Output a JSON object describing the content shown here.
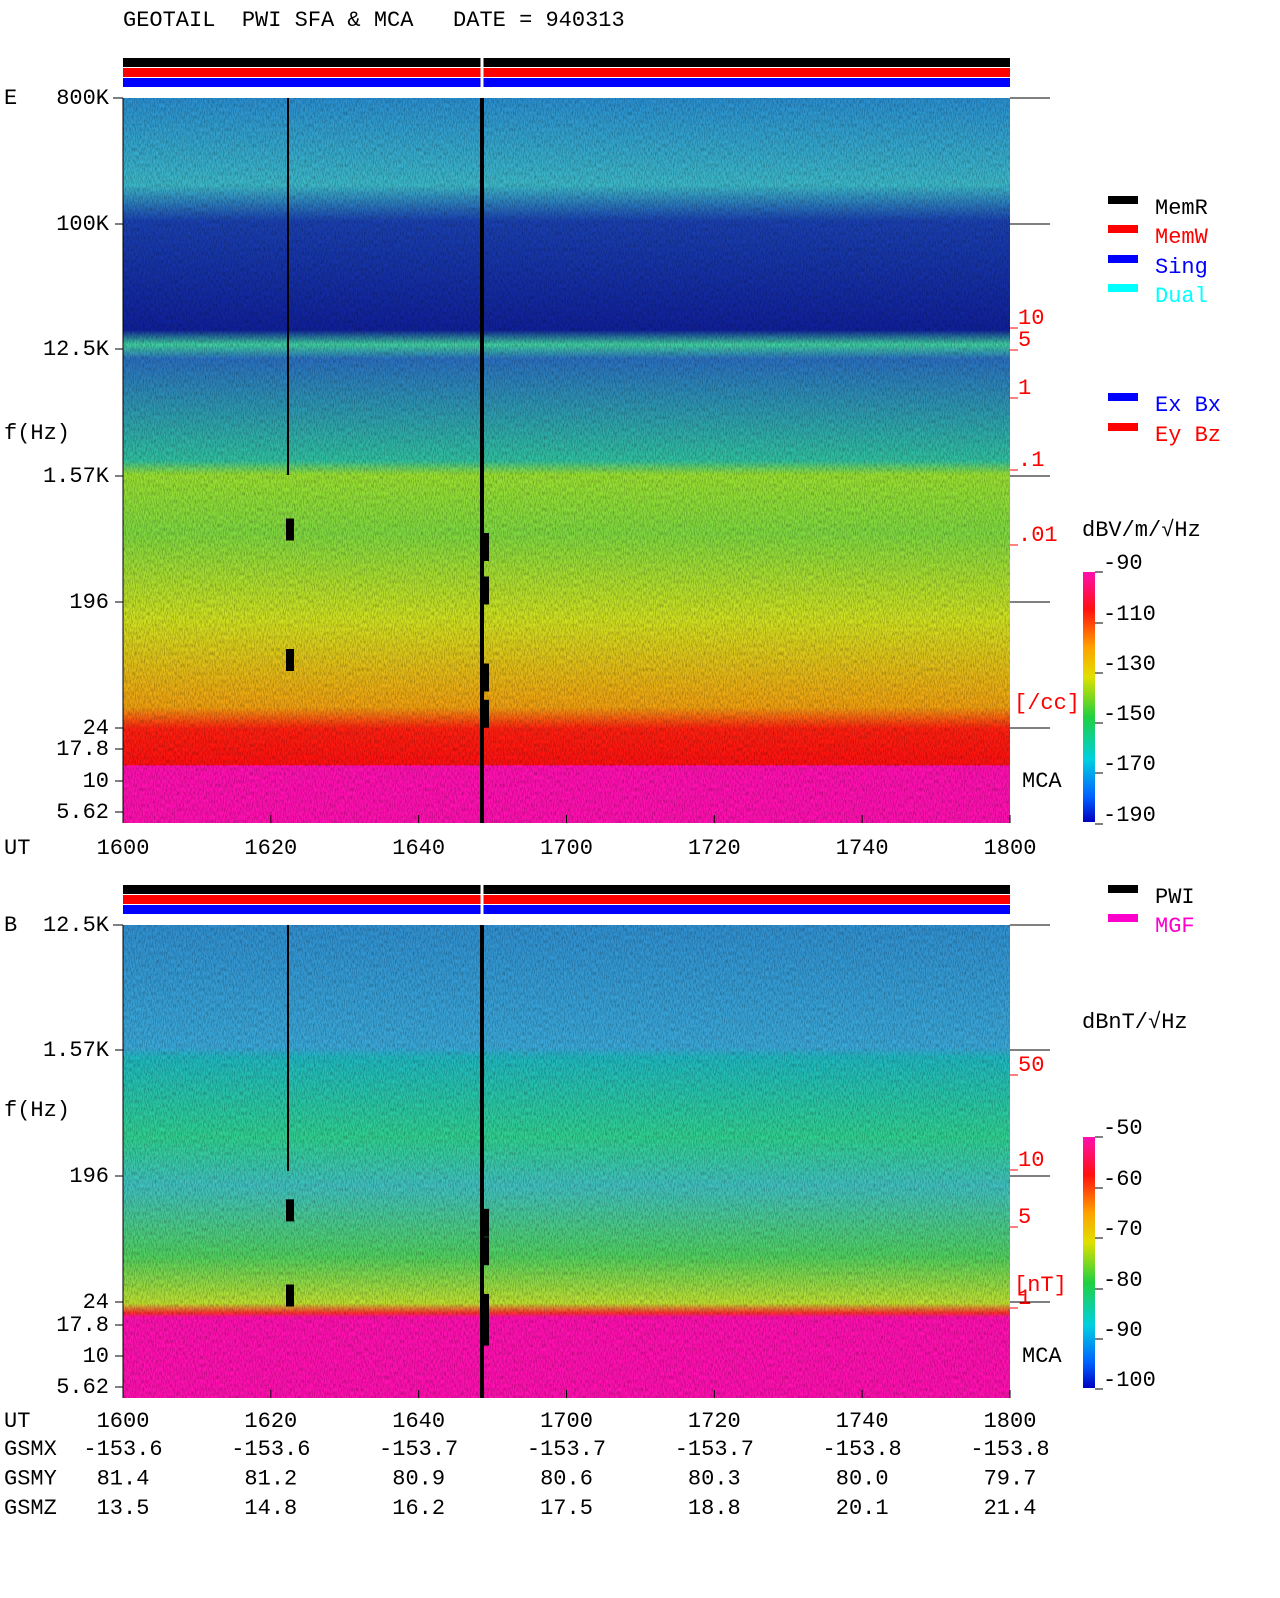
{
  "header": {
    "title": "GEOTAIL  PWI SFA & MCA   DATE = 940313"
  },
  "panels": [
    {
      "label": "E",
      "y_axis_label": "f(Hz)",
      "yticks": [
        "800K",
        "100K",
        "12.5K",
        "1.57K",
        "196",
        "24",
        "17.8",
        "10",
        "5.62"
      ],
      "right_ticks": [
        "10",
        "5",
        "1",
        ".1",
        ".01"
      ],
      "right_unit": "[/cc]",
      "mca_label": "MCA",
      "x_axis_label": "UT",
      "xticks": [
        "1600",
        "1620",
        "1640",
        "1700",
        "1720",
        "1740",
        "1800"
      ],
      "legend": [
        {
          "name": "MemR",
          "color": "#000000"
        },
        {
          "name": "MemW",
          "color": "#ff0000"
        },
        {
          "name": "Sing",
          "color": "#0000ff"
        },
        {
          "name": "Dual",
          "color": "#00ffff"
        },
        {
          "name": "Ex Bx",
          "color": "#0000ff"
        },
        {
          "name": "Ey Bz",
          "color": "#ff0000"
        }
      ],
      "colorbar": {
        "unit": "dBV/m/√Hz",
        "ticks": [
          -90,
          -110,
          -130,
          -150,
          -170,
          -190
        ]
      }
    },
    {
      "label": "B",
      "y_axis_label": "f(Hz)",
      "yticks": [
        "12.5K",
        "1.57K",
        "196",
        "24",
        "17.8",
        "10",
        "5.62"
      ],
      "right_ticks": [
        "50",
        "10",
        "5",
        "1"
      ],
      "right_unit": "[nT]",
      "mca_label": "MCA",
      "x_axis_label": "UT",
      "xticks": [
        "1600",
        "1620",
        "1640",
        "1700",
        "1720",
        "1740",
        "1800"
      ],
      "legend": [
        {
          "name": "PWI",
          "color": "#000000"
        },
        {
          "name": "MGF",
          "color": "#ff00cc"
        }
      ],
      "colorbar": {
        "unit": "dBnT/√Hz",
        "ticks": [
          -50,
          -60,
          -70,
          -80,
          -90,
          -100
        ]
      }
    }
  ],
  "orbit": {
    "rows": [
      {
        "name": "GSMX",
        "values": [
          "-153.6",
          "-153.6",
          "-153.7",
          "-153.7",
          "-153.7",
          "-153.8",
          "-153.8"
        ]
      },
      {
        "name": "GSMY",
        "values": [
          "81.4",
          "81.2",
          "80.9",
          "80.6",
          "80.3",
          "80.0",
          "79.7"
        ]
      },
      {
        "name": "GSMZ",
        "values": [
          "13.5",
          "14.8",
          "16.2",
          "17.5",
          "18.8",
          "20.1",
          "21.4"
        ]
      }
    ]
  }
}
